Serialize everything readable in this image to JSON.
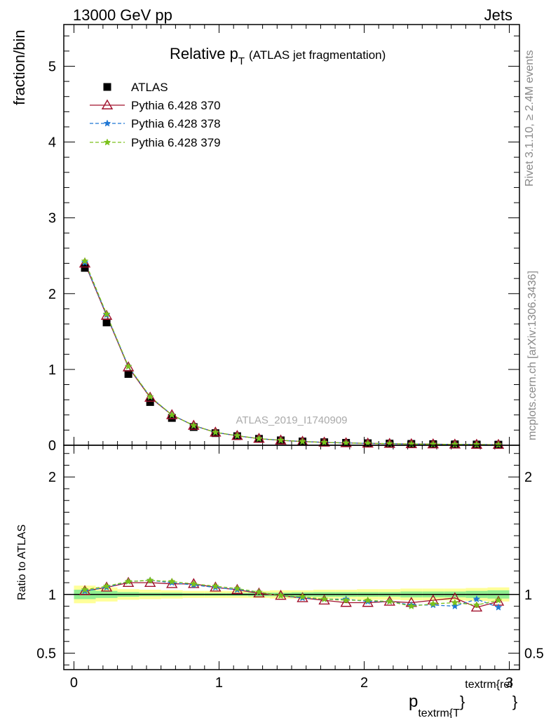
{
  "header": {
    "left": "13000 GeV pp",
    "right": "Jets"
  },
  "side_labels": {
    "rivet": "Rivet 3.1.10, ≥ 2.4M events",
    "source": "mcplots.cern.ch [arXiv:1306.3436]"
  },
  "chart_data": [
    {
      "type": "scatter",
      "title_main": "Relative p",
      "title_sub": "T",
      "title_rest": "(ATLAS jet fragmentation)",
      "ylabel": "fraction/bin",
      "watermark": "ATLAS_2019_I1740909",
      "xlim": [
        -0.07,
        3.07
      ],
      "ylim": [
        0,
        5.55
      ],
      "y_ticks": [
        0,
        1,
        2,
        3,
        4,
        5
      ],
      "x_tick_labels": [
        "0",
        "1",
        "2",
        "3"
      ],
      "x": [
        0.075,
        0.225,
        0.375,
        0.525,
        0.675,
        0.825,
        0.975,
        1.125,
        1.275,
        1.425,
        1.575,
        1.725,
        1.875,
        2.025,
        2.175,
        2.325,
        2.475,
        2.625,
        2.775,
        2.925
      ],
      "legend": [
        "ATLAS",
        "Pythia 6.428 370",
        "Pythia 6.428 378",
        "Pythia 6.428 379"
      ],
      "series": [
        {
          "name": "ATLAS",
          "color": "#000000",
          "marker": "square",
          "values": [
            2.34,
            1.62,
            0.94,
            0.57,
            0.36,
            0.24,
            0.16,
            0.12,
            0.085,
            0.065,
            0.05,
            0.04,
            0.032,
            0.027,
            0.022,
            0.018,
            0.015,
            0.012,
            0.01,
            0.008
          ]
        },
        {
          "name": "Pythia 6.428 370",
          "color": "#a0102c",
          "marker": "triangle",
          "dash": "",
          "values": [
            2.4,
            1.71,
            1.03,
            0.63,
            0.4,
            0.26,
            0.17,
            0.125,
            0.087,
            0.065,
            0.049,
            0.038,
            0.03,
            0.025,
            0.021,
            0.017,
            0.0145,
            0.0118,
            0.0093,
            0.0076
          ]
        },
        {
          "name": "Pythia 6.428 378",
          "color": "#1f77d4",
          "marker": "star",
          "dash": "5,3",
          "values": [
            2.41,
            1.72,
            1.04,
            0.64,
            0.4,
            0.26,
            0.17,
            0.125,
            0.087,
            0.065,
            0.049,
            0.038,
            0.03,
            0.025,
            0.021,
            0.016,
            0.014,
            0.011,
            0.0097,
            0.0072
          ]
        },
        {
          "name": "Pythia 6.428 379",
          "color": "#7ac11a",
          "marker": "star",
          "dash": "5,3",
          "values": [
            2.43,
            1.73,
            1.04,
            0.64,
            0.4,
            0.26,
            0.17,
            0.126,
            0.087,
            0.065,
            0.049,
            0.038,
            0.03,
            0.025,
            0.021,
            0.016,
            0.014,
            0.011,
            0.009,
            0.0077
          ]
        }
      ]
    },
    {
      "type": "scatter",
      "ylabel": "Ratio to ATLAS",
      "xlabel_main": "p",
      "xlabel_sub": "textrm{T",
      "xlabel_sup": "textrm{rel",
      "xlabel_brace": "}",
      "xlim": [
        -0.07,
        3.07
      ],
      "ylim": [
        0.36,
        2.27
      ],
      "y_tick_labels": [
        {
          "value": 0.5,
          "label": "0.5"
        },
        {
          "value": 1,
          "label": "1"
        },
        {
          "value": 2,
          "label": "2"
        }
      ],
      "x": [
        0.075,
        0.225,
        0.375,
        0.525,
        0.675,
        0.825,
        0.975,
        1.125,
        1.275,
        1.425,
        1.575,
        1.725,
        1.875,
        2.025,
        2.175,
        2.325,
        2.475,
        2.625,
        2.775,
        2.925
      ],
      "bands": {
        "yellow": [
          0.075,
          0.06,
          0.045,
          0.04,
          0.035,
          0.03,
          0.03,
          0.03,
          0.03,
          0.035,
          0.035,
          0.04,
          0.04,
          0.045,
          0.045,
          0.05,
          0.05,
          0.05,
          0.055,
          0.06
        ],
        "green": [
          0.04,
          0.03,
          0.02,
          0.015,
          0.015,
          0.012,
          0.012,
          0.012,
          0.015,
          0.015,
          0.018,
          0.02,
          0.02,
          0.02,
          0.02,
          0.025,
          0.025,
          0.025,
          0.03,
          0.035
        ]
      },
      "series": [
        {
          "name": "Pythia 6.428 370",
          "color": "#a0102c",
          "marker": "triangle",
          "dash": "",
          "values": [
            1.03,
            1.06,
            1.1,
            1.1,
            1.09,
            1.09,
            1.06,
            1.04,
            1.01,
            0.99,
            0.97,
            0.95,
            0.93,
            0.93,
            0.94,
            0.93,
            0.95,
            0.97,
            0.89,
            0.94
          ]
        },
        {
          "name": "Pythia 6.428 378",
          "color": "#1f77d4",
          "marker": "star",
          "dash": "5,3",
          "values": [
            1.03,
            1.06,
            1.11,
            1.12,
            1.1,
            1.08,
            1.06,
            1.04,
            1.02,
            0.99,
            0.97,
            0.96,
            0.96,
            0.94,
            0.94,
            0.91,
            0.91,
            0.9,
            0.96,
            0.89
          ]
        },
        {
          "name": "Pythia 6.428 379",
          "color": "#7ac11a",
          "marker": "star",
          "dash": "5,3",
          "values": [
            1.04,
            1.07,
            1.11,
            1.12,
            1.11,
            1.09,
            1.07,
            1.05,
            1.02,
            0.99,
            0.98,
            0.96,
            0.95,
            0.95,
            0.94,
            0.9,
            0.92,
            0.93,
            0.91,
            0.95
          ]
        }
      ]
    }
  ]
}
